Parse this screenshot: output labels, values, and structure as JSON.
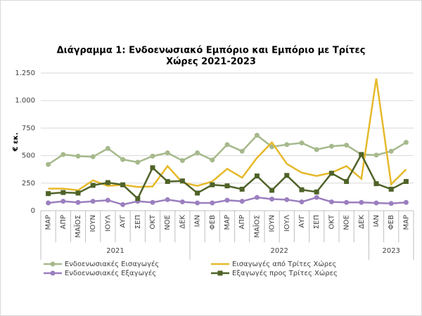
{
  "chart_data": {
    "type": "line",
    "title": [
      "Διάγραμμα 1: Ενδοενωσιακό Εμπόριο και Εμπόριο με Τρίτες",
      "Χώρες 2021-2023"
    ],
    "y_label": "€ εκ.",
    "groups": [
      {
        "label": "2021",
        "categories": [
          "ΜΑΡ",
          "ΑΠΡ",
          "ΜΑΪΟΣ",
          "ΙΟΥΝ",
          "ΙΟΥΛ",
          "ΑΥΓ",
          "ΣΕΠ",
          "ΟΚΤ",
          "ΝΟΕ",
          "ΔΕΚ"
        ]
      },
      {
        "label": "2022",
        "categories": [
          "ΙΑΝ",
          "ΦΕΒ",
          "ΜΑΡ",
          "ΑΠΡ",
          "ΜΑΪΟΣ",
          "ΙΟΥΝ",
          "ΙΟΥΛ",
          "ΑΥΓ",
          "ΣΕΠ",
          "ΟΚΤ",
          "ΝΟΕ",
          "ΔΕΚ"
        ]
      },
      {
        "label": "2023",
        "categories": [
          "ΙΑΝ",
          "ΦΕΒ",
          "ΜΑΡ"
        ]
      }
    ],
    "ylim": [
      0,
      1250
    ],
    "yticks": [
      0,
      250,
      500,
      750,
      {
        "value": 1000,
        "label": "1.000"
      },
      {
        "value": 1250,
        "label": "1.250"
      }
    ],
    "grid": true,
    "series": [
      {
        "name": "Ενδοενωσιακές Εισαγωγές",
        "color": "#a6b98c",
        "marker": "circle",
        "values": [
          420,
          510,
          495,
          490,
          565,
          465,
          440,
          495,
          525,
          455,
          525,
          460,
          600,
          540,
          685,
          580,
          600,
          615,
          555,
          585,
          595,
          510,
          505,
          540,
          620
        ]
      },
      {
        "name": "Εισαγωγές από Τρίτες Χώρες",
        "color": "#e6b92a",
        "marker": "none",
        "values": [
          200,
          200,
          185,
          275,
          225,
          235,
          215,
          220,
          405,
          255,
          225,
          265,
          380,
          300,
          480,
          620,
          425,
          345,
          315,
          345,
          405,
          290,
          1200,
          240,
          375
        ]
      },
      {
        "name": "Ενδοενωσιακές Εξαγωγές",
        "color": "#9b7fbf",
        "marker": "circle",
        "values": [
          70,
          85,
          75,
          85,
          95,
          55,
          85,
          75,
          100,
          80,
          70,
          70,
          95,
          85,
          120,
          105,
          100,
          80,
          120,
          80,
          75,
          75,
          70,
          65,
          75
        ]
      },
      {
        "name": "Εξαγωγές προς Τρίτες Χώρες",
        "color": "#4f6228",
        "marker": "square",
        "values": [
          155,
          165,
          160,
          230,
          255,
          235,
          110,
          390,
          265,
          270,
          160,
          235,
          225,
          195,
          315,
          185,
          320,
          190,
          170,
          340,
          265,
          510,
          245,
          195,
          265
        ]
      }
    ]
  }
}
